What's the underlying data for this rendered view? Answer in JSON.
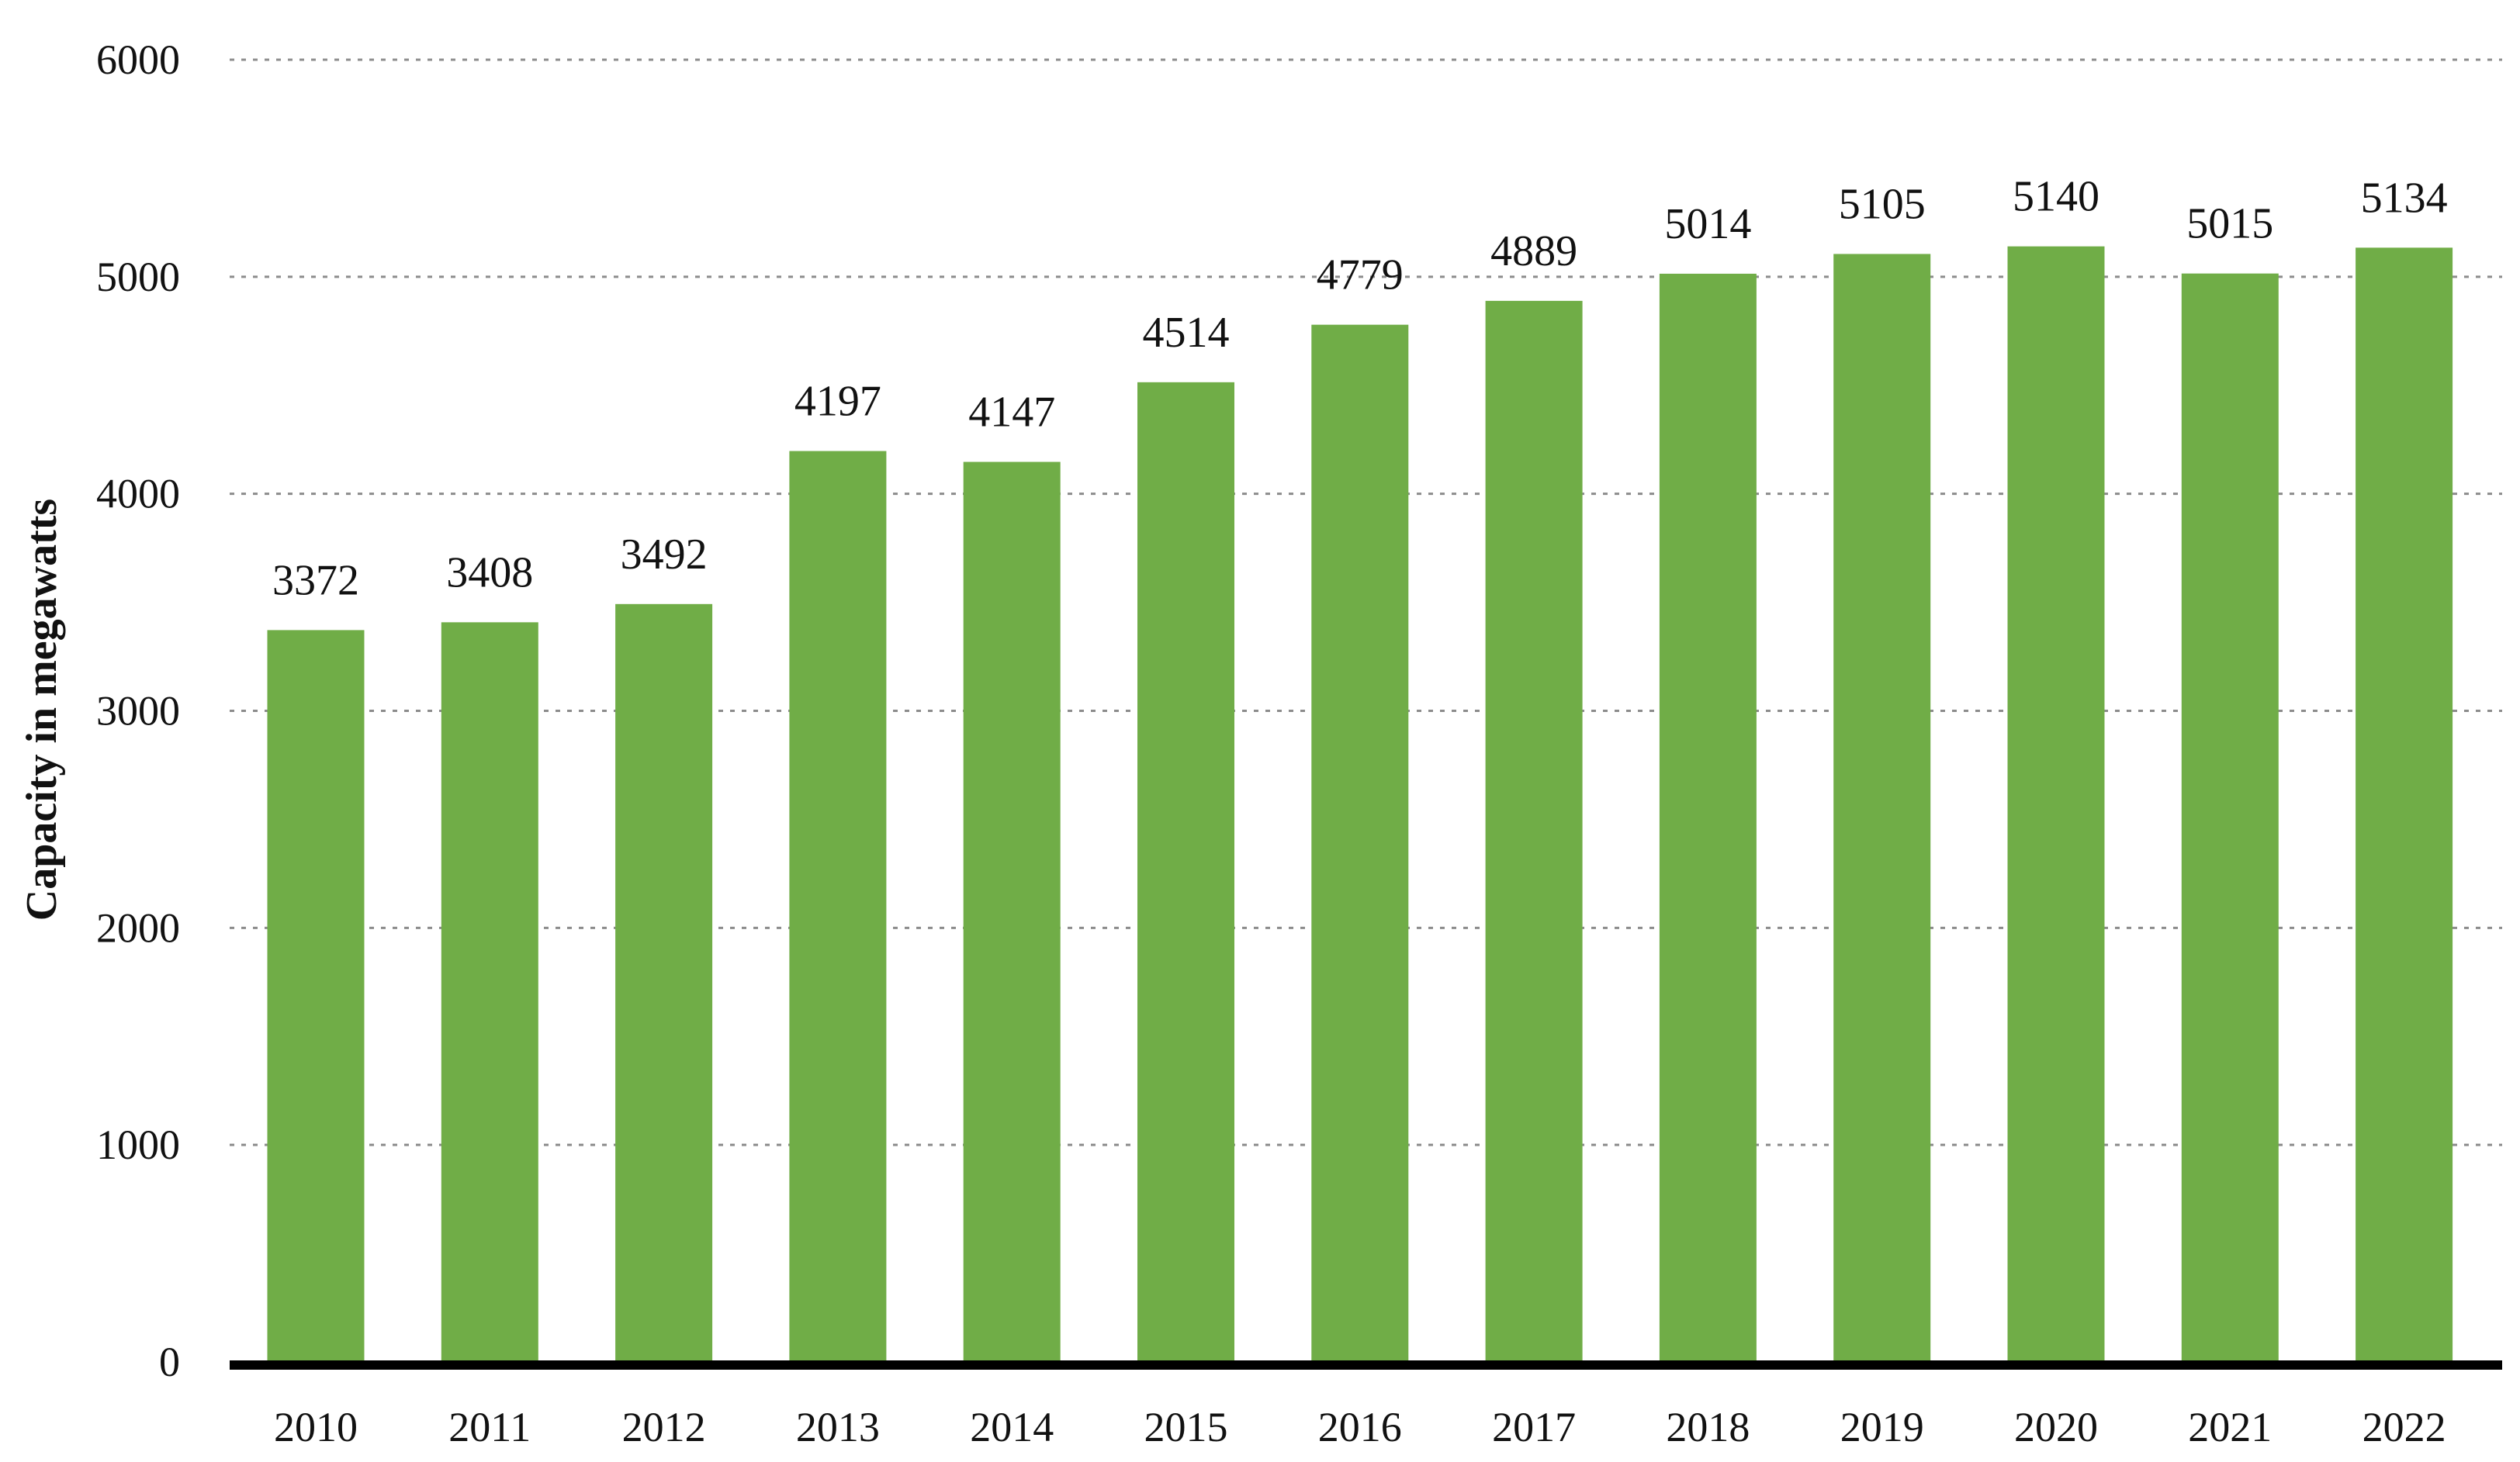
{
  "chart_data": {
    "type": "bar",
    "categories": [
      "2010",
      "2011",
      "2012",
      "2013",
      "2014",
      "2015",
      "2016",
      "2017",
      "2018",
      "2019",
      "2020",
      "2021",
      "2022"
    ],
    "values": [
      3372,
      3408,
      3492,
      4197,
      4147,
      4514,
      4779,
      4889,
      5014,
      5105,
      5140,
      5015,
      5134
    ],
    "data_labels": [
      "3372",
      "3408",
      "3492",
      "4197",
      "4147",
      "4514",
      "4779",
      "4889",
      "5014",
      "5105",
      "5140",
      "5015",
      "5134"
    ],
    "title": "",
    "xlabel": "",
    "ylabel": "Capacity in megawatts",
    "ylim": [
      0,
      6000
    ],
    "yticks": [
      0,
      1000,
      2000,
      3000,
      4000,
      5000,
      6000
    ],
    "ytick_labels": [
      "0",
      "1000",
      "2000",
      "3000",
      "4000",
      "5000",
      "6000"
    ],
    "grid": "horizontal dotted",
    "legend": "none",
    "colors": {
      "bar": "#70AD47",
      "axis": "#000000",
      "grid": "#8c8c8c",
      "text": "#111111"
    }
  }
}
